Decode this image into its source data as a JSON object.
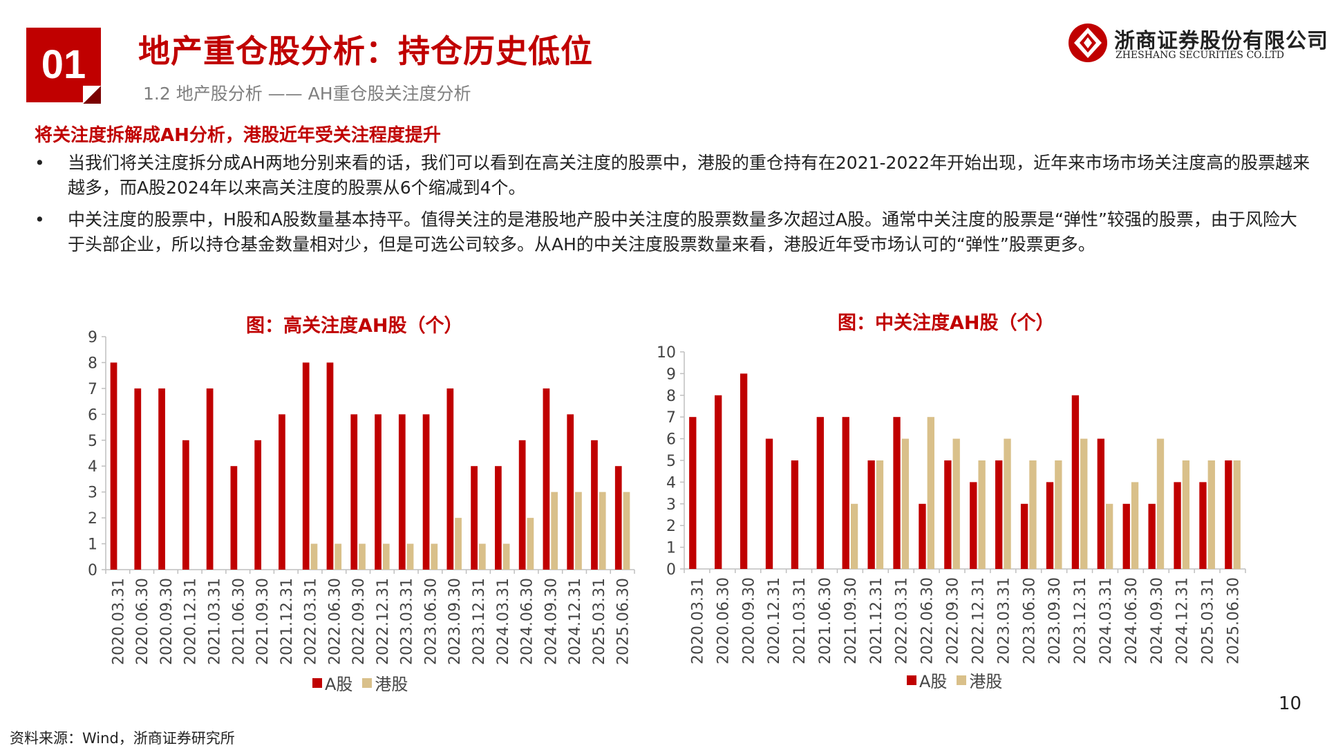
{
  "header": {
    "badge": "01",
    "title": "地产重仓股分析：持仓历史低位",
    "subtitle": "1.2 地产股分析 —— AH重仓股关注度分析"
  },
  "logo": {
    "name_cn": "浙商证券股份有限公司",
    "name_en": "ZHESHANG SECURITIES CO.LTD"
  },
  "content": {
    "headline": "将关注度拆解成AH分析，港股近年受关注程度提升",
    "bullets": [
      "当我们将关注度拆分成AH两地分别来看的话，我们可以看到在高关注度的股票中，港股的重仓持有在2021-2022年开始出现，近年来市场市场关注度高的股票越来越多，而A股2024年以来高关注度的股票从6个缩减到4个。",
      "中关注度的股票中，H股和A股数量基本持平。值得关注的是港股地产股中关注度的股票数量多次超过A股。通常中关注度的股票是“弹性”较强的股票，由于风险大于头部企业，所以持仓基金数量相对少，但是可选公司较多。从AH的中关注度股票数量来看，港股近年受市场认可的“弹性”股票更多。"
    ],
    "bullet_symbol": "•"
  },
  "colors": {
    "a_share": "#c00000",
    "hk_share": "#d9c08a",
    "accent": "#c00000"
  },
  "chart_data": [
    {
      "type": "bar",
      "title": "图：高关注度AH股（个）",
      "categories": [
        "2020.03.31",
        "2020.06.30",
        "2020.09.30",
        "2020.12.31",
        "2021.03.31",
        "2021.06.30",
        "2021.09.30",
        "2021.12.31",
        "2022.03.31",
        "2022.06.30",
        "2022.09.30",
        "2022.12.31",
        "2023.03.31",
        "2023.06.30",
        "2023.09.30",
        "2023.12.31",
        "2024.03.31",
        "2024.06.30",
        "2024.09.30",
        "2024.12.31",
        "2025.03.31",
        "2025.06.30"
      ],
      "series": [
        {
          "name": "A股",
          "values": [
            8,
            7,
            7,
            5,
            7,
            4,
            5,
            6,
            8,
            8,
            6,
            6,
            6,
            6,
            7,
            4,
            4,
            5,
            7,
            6,
            5,
            4
          ]
        },
        {
          "name": "港股",
          "values": [
            0,
            0,
            0,
            0,
            0,
            0,
            0,
            0,
            1,
            1,
            1,
            1,
            1,
            1,
            2,
            1,
            1,
            2,
            3,
            3,
            3,
            3
          ]
        }
      ],
      "ylim": [
        0,
        9
      ],
      "yticks": [
        "0",
        "1",
        "2",
        "3",
        "4",
        "5",
        "6",
        "7",
        "8",
        "9"
      ],
      "legend_position": "bottom"
    },
    {
      "type": "bar",
      "title": "图：中关注度AH股（个）",
      "categories": [
        "2020.03.31",
        "2020.06.30",
        "2020.09.30",
        "2020.12.31",
        "2021.03.31",
        "2021.06.30",
        "2021.09.30",
        "2021.12.31",
        "2022.03.31",
        "2022.06.30",
        "2022.09.30",
        "2022.12.31",
        "2023.03.31",
        "2023.06.30",
        "2023.09.30",
        "2023.12.31",
        "2024.03.31",
        "2024.06.30",
        "2024.09.30",
        "2024.12.31",
        "2025.03.31",
        "2025.06.30"
      ],
      "series": [
        {
          "name": "A股",
          "values": [
            7,
            8,
            9,
            6,
            5,
            7,
            7,
            5,
            7,
            3,
            5,
            4,
            5,
            3,
            4,
            8,
            6,
            3,
            3,
            4,
            4,
            5
          ]
        },
        {
          "name": "港股",
          "values": [
            0,
            0,
            0,
            0,
            0,
            0,
            3,
            5,
            6,
            7,
            6,
            5,
            6,
            5,
            5,
            6,
            3,
            4,
            6,
            5,
            5,
            5
          ]
        }
      ],
      "ylim": [
        0,
        10
      ],
      "yticks": [
        "0",
        "1",
        "2",
        "3",
        "4",
        "5",
        "6",
        "7",
        "8",
        "9",
        "10"
      ],
      "legend_position": "bottom"
    }
  ],
  "footer": {
    "page_number": "10",
    "source": "资料来源：Wind，浙商证券研究所"
  }
}
